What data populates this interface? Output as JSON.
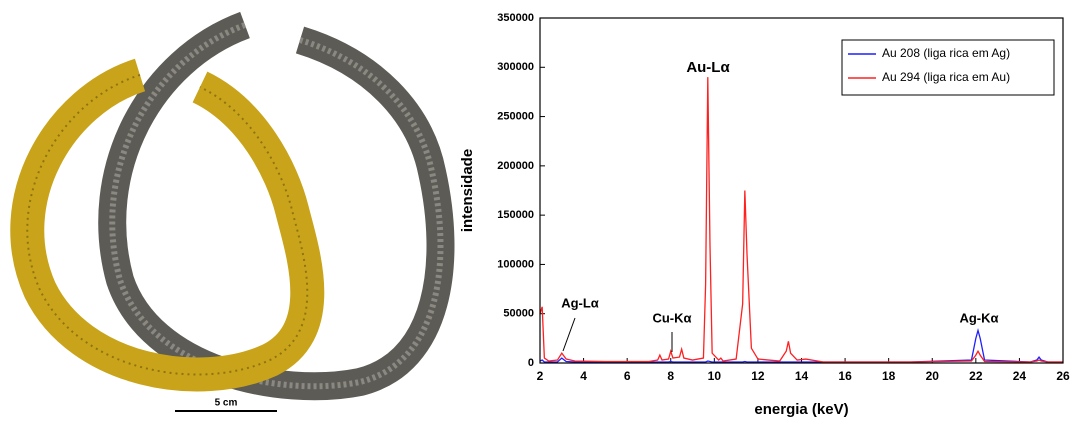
{
  "photo": {
    "scale_label": "5 cm"
  },
  "chart_data": {
    "type": "line",
    "x_label": "energia (keV)",
    "y_label": "intensidade",
    "x": [
      2,
      2.1,
      2.2,
      2.4,
      2.8,
      3,
      3.2,
      3.6,
      5,
      7,
      7.4,
      7.5,
      7.6,
      7.9,
      8,
      8.1,
      8.4,
      8.5,
      8.6,
      9,
      9.5,
      9.6,
      9.7,
      9.8,
      9.9,
      10.2,
      10.3,
      10.4,
      11,
      11.3,
      11.4,
      11.5,
      11.7,
      12,
      13,
      13.3,
      13.4,
      13.5,
      13.8,
      14.2,
      15,
      19,
      21.8,
      22,
      22.1,
      22.2,
      22.4,
      24.5,
      24.8,
      24.9,
      25,
      25.3,
      26
    ],
    "series": [
      {
        "name": "Au 208 (liga rica em Ag)",
        "color": "#1f1fff",
        "values": [
          2000,
          3000,
          1000,
          1000,
          1000,
          5000,
          1500,
          1000,
          1000,
          1000,
          1000,
          1000,
          1000,
          1000,
          1500,
          1000,
          1000,
          1000,
          1000,
          1000,
          1000,
          1000,
          2000,
          1500,
          1000,
          1000,
          1000,
          1000,
          1000,
          1000,
          1500,
          1000,
          1000,
          1000,
          1000,
          1000,
          1000,
          1000,
          1000,
          1000,
          1000,
          1000,
          3000,
          25000,
          33000,
          25000,
          3000,
          1000,
          3000,
          6000,
          3000,
          1000,
          1000
        ]
      },
      {
        "name": "Au 294 (liga rica em Au)",
        "color": "#ff2020",
        "values": [
          50000,
          57000,
          5000,
          2000,
          3000,
          10000,
          4000,
          2000,
          1500,
          1500,
          3000,
          8000,
          3000,
          4000,
          12000,
          5000,
          6000,
          14000,
          5000,
          3000,
          5000,
          80000,
          290000,
          120000,
          10000,
          3000,
          5000,
          2000,
          4000,
          60000,
          175000,
          110000,
          15000,
          4000,
          2000,
          12000,
          22000,
          10000,
          3000,
          4000,
          1000,
          1000,
          2000,
          8000,
          12000,
          8000,
          1500,
          1000,
          2000,
          3000,
          2000,
          1000,
          1000
        ]
      }
    ],
    "annotations": [
      "Au-Lα",
      "Cu-Kα",
      "Ag-Lα",
      "Ag-Kα"
    ],
    "xlim": [
      2,
      26
    ],
    "xticks": [
      2,
      4,
      6,
      8,
      10,
      12,
      14,
      16,
      18,
      20,
      22,
      24,
      26
    ],
    "ylim": [
      0,
      350000
    ],
    "yticks": [
      0,
      50000,
      100000,
      150000,
      200000,
      250000,
      300000,
      350000
    ],
    "legend": "upper right"
  }
}
